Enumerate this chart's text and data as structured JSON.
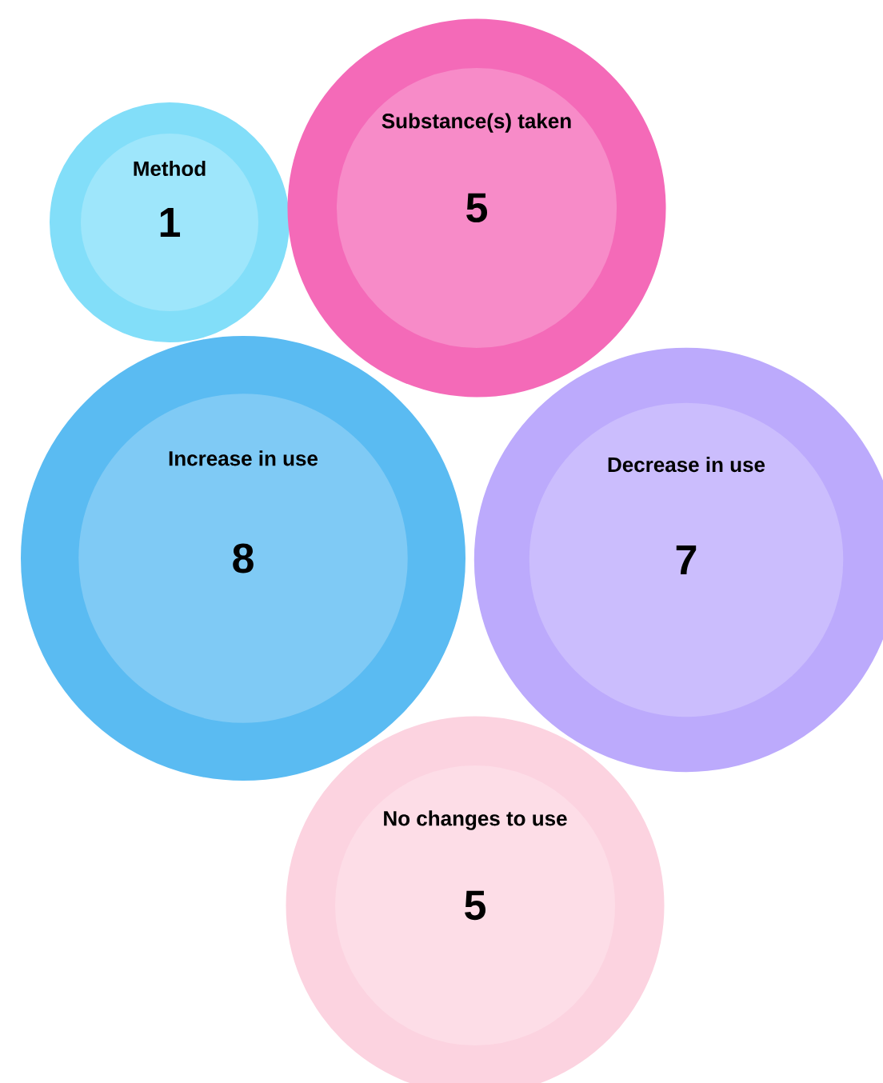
{
  "chart_data": {
    "type": "other",
    "categories": [
      "Method",
      "Substance(s) taken",
      "Increase in use",
      "Decrease in use",
      "No changes to use"
    ],
    "values": [
      1,
      5,
      8,
      7,
      5
    ],
    "colors": [
      "#9ee6fb",
      "#f78bc8",
      "#7fcaf5",
      "#cbbdfd",
      "#fddde7"
    ],
    "data_labels": true
  }
}
